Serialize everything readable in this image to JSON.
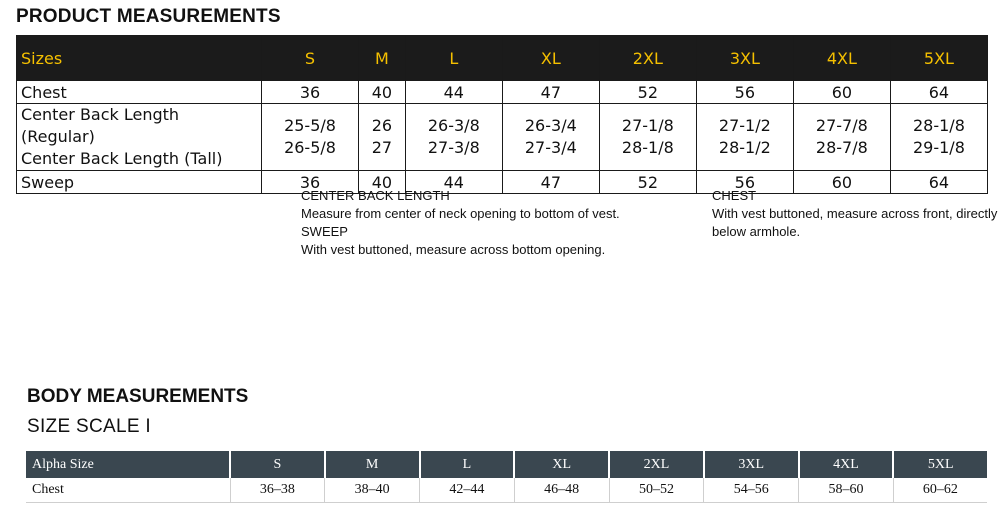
{
  "product": {
    "title": "PRODUCT MEASUREMENTS",
    "header": [
      "Sizes",
      "S",
      "M",
      "L",
      "XL",
      "2XL",
      "3XL",
      "4XL",
      "5XL"
    ],
    "chest": {
      "label": "Chest",
      "values": [
        "36",
        "40",
        "44",
        "47",
        "52",
        "56",
        "60",
        "64"
      ]
    },
    "cbl": {
      "label_regular": "Center Back Length (Regular)",
      "label_tall": "Center Back Length (Tall)",
      "regular": [
        "25-5/8",
        "26",
        "26-3/8",
        "26-3/4",
        "27-1/8",
        "27-1/2",
        "27-7/8",
        "28-1/8"
      ],
      "tall": [
        "26-5/8",
        "27",
        "27-3/8",
        "27-3/4",
        "28-1/8",
        "28-1/2",
        "28-7/8",
        "29-1/8"
      ]
    },
    "sweep": {
      "label": "Sweep",
      "values": [
        "36",
        "40",
        "44",
        "47",
        "52",
        "56",
        "60",
        "64"
      ]
    }
  },
  "notes": {
    "cbl_title": "CENTER BACK LENGTH",
    "cbl_text": "Measure from center of neck opening to bottom of vest.",
    "sweep_title": "SWEEP",
    "sweep_text": "With vest buttoned, measure across bottom opening.",
    "chest_title": "CHEST",
    "chest_text_1": "With vest buttoned, measure across front, directly",
    "chest_text_2": "below armhole."
  },
  "body": {
    "title": "BODY MEASUREMENTS",
    "subtitle": "SIZE SCALE I",
    "header": [
      "Alpha Size",
      "S",
      "M",
      "L",
      "XL",
      "2XL",
      "3XL",
      "4XL",
      "5XL"
    ],
    "chest": {
      "label": "Chest",
      "values": [
        "36–38",
        "38–40",
        "42–44",
        "46–48",
        "50–52",
        "54–56",
        "58–60",
        "60–62"
      ]
    }
  }
}
